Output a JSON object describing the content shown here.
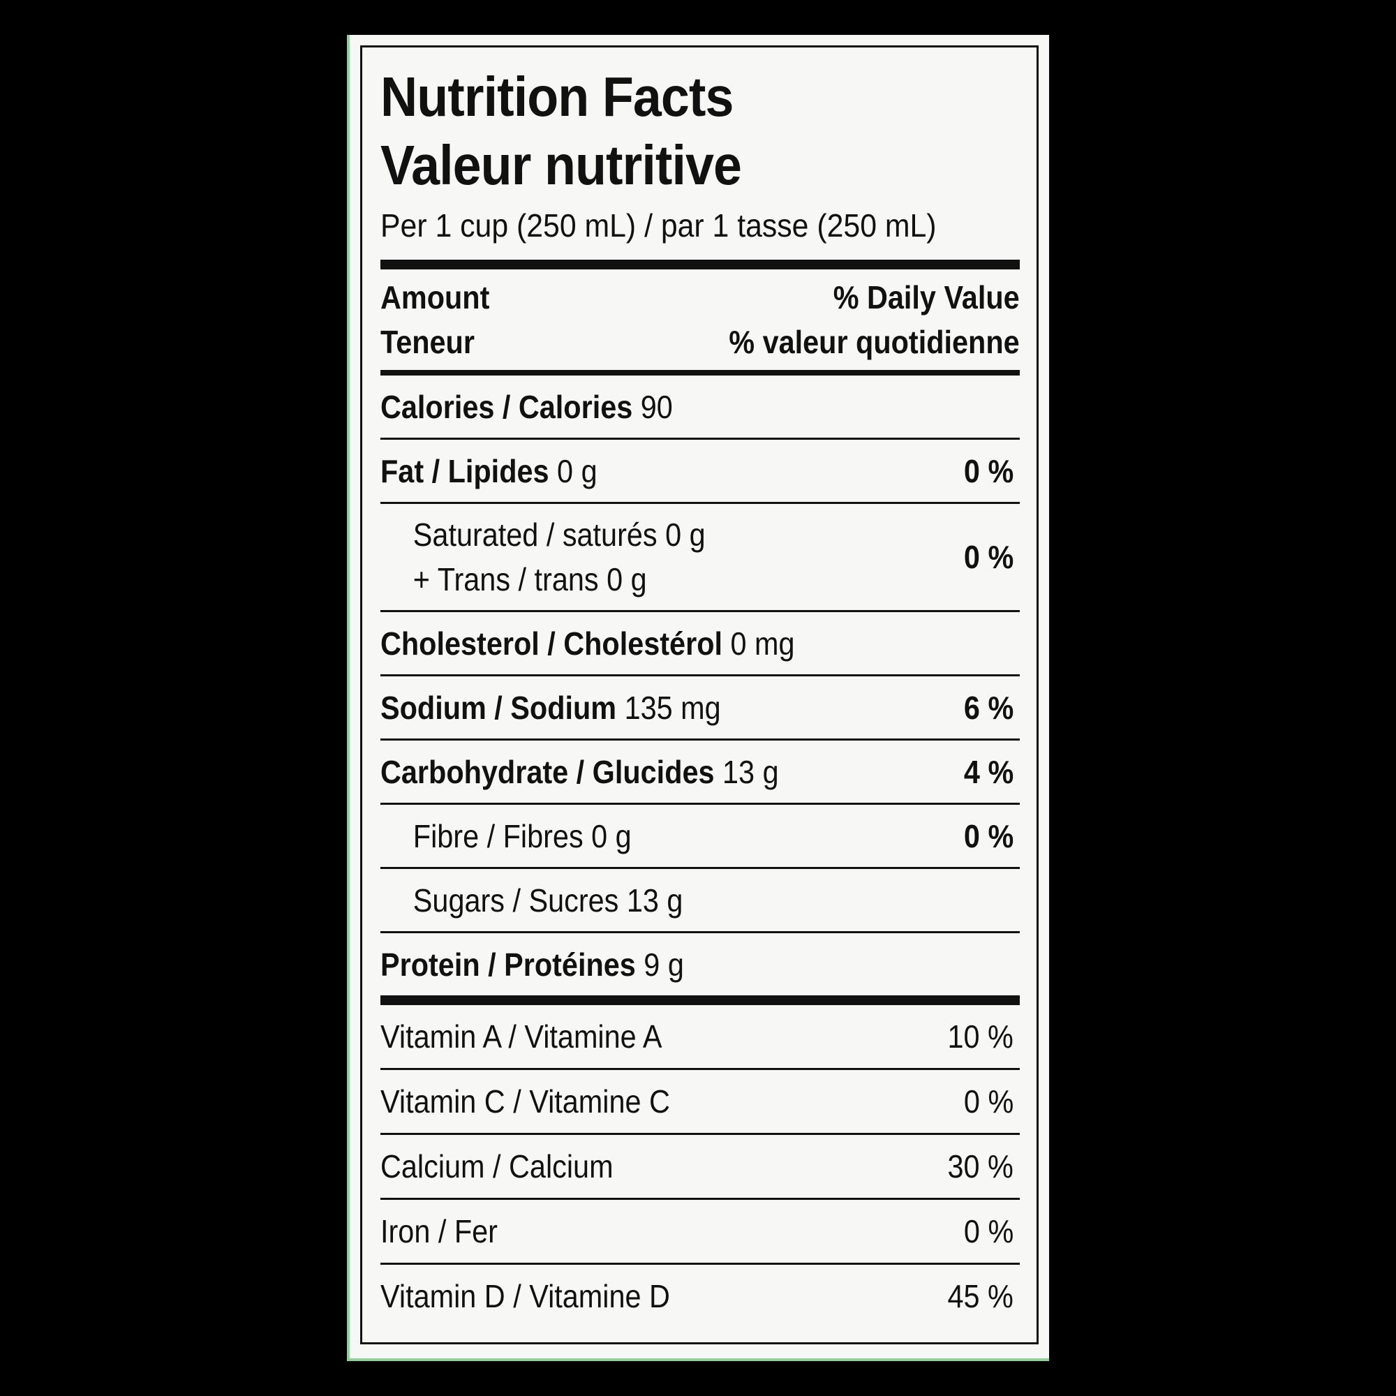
{
  "label": {
    "title_en": "Nutrition Facts",
    "title_fr": "Valeur nutritive",
    "serving": "Per 1 cup (250 mL) / par 1 tasse (250 mL)",
    "header": {
      "amount_en": "Amount",
      "amount_fr": "Teneur",
      "dv_en": "% Daily Value",
      "dv_fr": "% valeur quotidienne"
    },
    "calories": {
      "label": "Calories / Calories",
      "value": "90"
    },
    "fat": {
      "label": "Fat / Lipides",
      "value": "0 g",
      "dv": "0 %"
    },
    "saturated": {
      "label": "Saturated / saturés 0 g",
      "trans": "+ Trans / trans 0 g",
      "dv": "0 %"
    },
    "cholesterol": {
      "label": "Cholesterol / Cholestérol",
      "value": "0 mg"
    },
    "sodium": {
      "label": "Sodium / Sodium",
      "value": "135 mg",
      "dv": "6 %"
    },
    "carbohydrate": {
      "label": "Carbohydrate / Glucides",
      "value": "13 g",
      "dv": "4 %"
    },
    "fibre": {
      "label": "Fibre / Fibres 0 g",
      "dv": "0 %"
    },
    "sugars": {
      "label": "Sugars / Sucres 13 g"
    },
    "protein": {
      "label": "Protein / Protéines",
      "value": "9 g"
    },
    "vitamins": [
      {
        "label": "Vitamin A / Vitamine A",
        "dv": "10 %"
      },
      {
        "label": "Vitamin C / Vitamine C",
        "dv": "0 %"
      },
      {
        "label": "Calcium / Calcium",
        "dv": "30 %"
      },
      {
        "label": "Iron / Fer",
        "dv": "0 %"
      },
      {
        "label": "Vitamin D / Vitamine D",
        "dv": "45 %"
      }
    ]
  },
  "colors": {
    "background": "#000000",
    "label_bg": "#f7f8f6",
    "ink": "#111111",
    "edge_accent": "#8fd19a"
  }
}
